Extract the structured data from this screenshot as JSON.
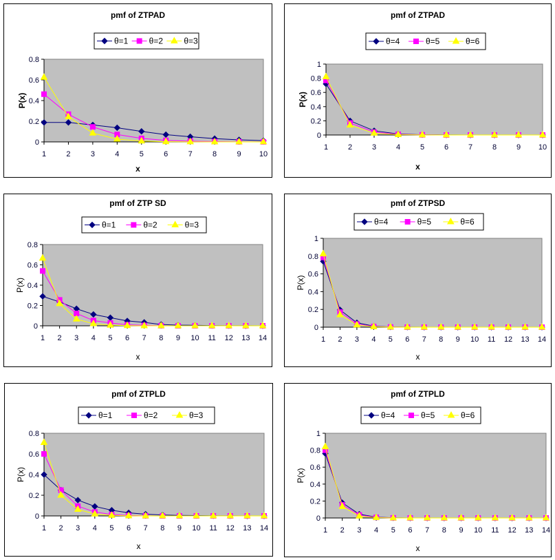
{
  "colors": {
    "s1": "#000080",
    "s2": "#ff00ff",
    "s3": "#ffff00",
    "plot_bg": "#c0c0c0"
  },
  "chart_data": [
    {
      "type": "line",
      "title": "pmf of ZTPAD",
      "xlabel": "x",
      "ylabel": "P(x)",
      "x": [
        1,
        2,
        3,
        4,
        5,
        6,
        7,
        8,
        9,
        10
      ],
      "ylim": [
        0,
        0.8
      ],
      "yticks": [
        "0",
        "0.2",
        "0.4",
        "0.6",
        "0.8"
      ],
      "legend": "top-center",
      "grid": false,
      "series": [
        {
          "name": "θ=1",
          "marker": "diamond",
          "values": [
            0.188,
            0.188,
            0.164,
            0.137,
            0.102,
            0.07,
            0.05,
            0.032,
            0.02,
            0.012
          ]
        },
        {
          "name": "θ=2",
          "marker": "square",
          "values": [
            0.462,
            0.268,
            0.145,
            0.072,
            0.034,
            0.015,
            0.007,
            0.003,
            0.001,
            0.0005
          ]
        },
        {
          "name": "θ=3",
          "marker": "triangle",
          "values": [
            0.625,
            0.243,
            0.085,
            0.027,
            0.008,
            0.002,
            0.001,
            0,
            0,
            0
          ]
        }
      ]
    },
    {
      "type": "line",
      "title": "pmf of ZTPAD",
      "xlabel": "x",
      "ylabel": "P(x)",
      "x": [
        1,
        2,
        3,
        4,
        5,
        6,
        7,
        8,
        9,
        10
      ],
      "ylim": [
        0,
        1
      ],
      "yticks": [
        "0",
        "0.2",
        "0.4",
        "0.6",
        "0.8",
        "1"
      ],
      "legend": "top-center",
      "grid": false,
      "series": [
        {
          "name": "θ=4",
          "marker": "diamond",
          "values": [
            0.72,
            0.2,
            0.06,
            0.015,
            0.004,
            0.001,
            0,
            0,
            0,
            0
          ]
        },
        {
          "name": "θ=5",
          "marker": "square",
          "values": [
            0.77,
            0.17,
            0.04,
            0.01,
            0.002,
            0,
            0,
            0,
            0,
            0
          ]
        },
        {
          "name": "θ=6",
          "marker": "triangle",
          "values": [
            0.82,
            0.14,
            0.025,
            0.005,
            0.001,
            0,
            0,
            0,
            0,
            0
          ]
        }
      ]
    },
    {
      "type": "line",
      "title": "pmf of ZTP SD",
      "xlabel": "x",
      "ylabel": "P(x)",
      "x": [
        1,
        2,
        3,
        4,
        5,
        6,
        7,
        8,
        9,
        10,
        11,
        12,
        13,
        14
      ],
      "ylim": [
        0,
        0.8
      ],
      "yticks": [
        "0",
        "0.2",
        "0.4",
        "0.6",
        "0.8"
      ],
      "legend": "top-center",
      "grid": false,
      "series": [
        {
          "name": "θ=1",
          "marker": "diamond",
          "values": [
            0.29,
            0.235,
            0.168,
            0.112,
            0.08,
            0.048,
            0.034,
            0.013,
            0.007,
            0.005,
            0.002,
            0.001,
            0.0005,
            0.0002
          ]
        },
        {
          "name": "θ=2",
          "marker": "square",
          "values": [
            0.54,
            0.255,
            0.122,
            0.052,
            0.028,
            0.01,
            0.004,
            0.001,
            0,
            0,
            0,
            0,
            0,
            0
          ]
        },
        {
          "name": "θ=3",
          "marker": "triangle",
          "values": [
            0.665,
            0.218,
            0.066,
            0.02,
            0.006,
            0.002,
            0,
            0,
            0,
            0,
            0,
            0,
            0,
            0
          ]
        }
      ]
    },
    {
      "type": "line",
      "title": "pmf of ZTPSD",
      "xlabel": "x",
      "ylabel": "P(x)",
      "x": [
        1,
        2,
        3,
        4,
        5,
        6,
        7,
        8,
        9,
        10,
        11,
        12,
        13,
        14
      ],
      "ylim": [
        0,
        1
      ],
      "yticks": [
        "0",
        "0.2",
        "0.4",
        "0.6",
        "0.8",
        "1"
      ],
      "legend": "top-center",
      "grid": false,
      "series": [
        {
          "name": "θ=4",
          "marker": "diamond",
          "values": [
            0.74,
            0.195,
            0.05,
            0.012,
            0.003,
            0.001,
            0,
            0,
            0,
            0,
            0,
            0,
            0,
            0
          ]
        },
        {
          "name": "θ=5",
          "marker": "square",
          "values": [
            0.785,
            0.17,
            0.035,
            0.008,
            0.002,
            0,
            0,
            0,
            0,
            0,
            0,
            0,
            0,
            0
          ]
        },
        {
          "name": "θ=6",
          "marker": "triangle",
          "values": [
            0.825,
            0.14,
            0.025,
            0.005,
            0.001,
            0,
            0,
            0,
            0,
            0,
            0,
            0,
            0,
            0
          ]
        }
      ]
    },
    {
      "type": "line",
      "title": "pmf of ZTPLD",
      "xlabel": "x",
      "ylabel": "P(x)",
      "x": [
        1,
        2,
        3,
        4,
        5,
        6,
        7,
        8,
        9,
        10,
        11,
        12,
        13,
        14
      ],
      "ylim": [
        0,
        0.8
      ],
      "yticks": [
        "0",
        "0.2",
        "0.4",
        "0.6",
        "0.8"
      ],
      "legend": "top-center",
      "grid": false,
      "series": [
        {
          "name": "θ=1",
          "marker": "diamond",
          "values": [
            0.4,
            0.25,
            0.153,
            0.092,
            0.055,
            0.03,
            0.017,
            0.009,
            0.005,
            0.003,
            0.001,
            0.001,
            0,
            0
          ]
        },
        {
          "name": "θ=2",
          "marker": "square",
          "values": [
            0.6,
            0.25,
            0.095,
            0.038,
            0.013,
            0.004,
            0.001,
            0,
            0,
            0,
            0,
            0,
            0,
            0
          ]
        },
        {
          "name": "θ=3",
          "marker": "triangle",
          "values": [
            0.71,
            0.2,
            0.063,
            0.018,
            0.005,
            0.001,
            0,
            0,
            0,
            0,
            0,
            0,
            0,
            0
          ]
        }
      ]
    },
    {
      "type": "line",
      "title": "pmf of ZTPLD",
      "xlabel": "x",
      "ylabel": "P(x)",
      "x": [
        1,
        2,
        3,
        4,
        5,
        6,
        7,
        8,
        9,
        10,
        11,
        12,
        13,
        14
      ],
      "ylim": [
        0,
        1
      ],
      "yticks": [
        "0",
        "0.2",
        "0.4",
        "0.6",
        "0.8",
        "1"
      ],
      "legend": "top-center",
      "grid": false,
      "series": [
        {
          "name": "θ=4",
          "marker": "diamond",
          "values": [
            0.76,
            0.18,
            0.045,
            0.01,
            0.002,
            0,
            0,
            0,
            0,
            0,
            0,
            0,
            0,
            0
          ]
        },
        {
          "name": "θ=5",
          "marker": "square",
          "values": [
            0.8,
            0.155,
            0.035,
            0.007,
            0.001,
            0,
            0,
            0,
            0,
            0,
            0,
            0,
            0,
            0
          ]
        },
        {
          "name": "θ=6",
          "marker": "triangle",
          "values": [
            0.84,
            0.135,
            0.022,
            0.004,
            0,
            0,
            0,
            0,
            0,
            0,
            0,
            0,
            0,
            0
          ]
        }
      ]
    }
  ]
}
